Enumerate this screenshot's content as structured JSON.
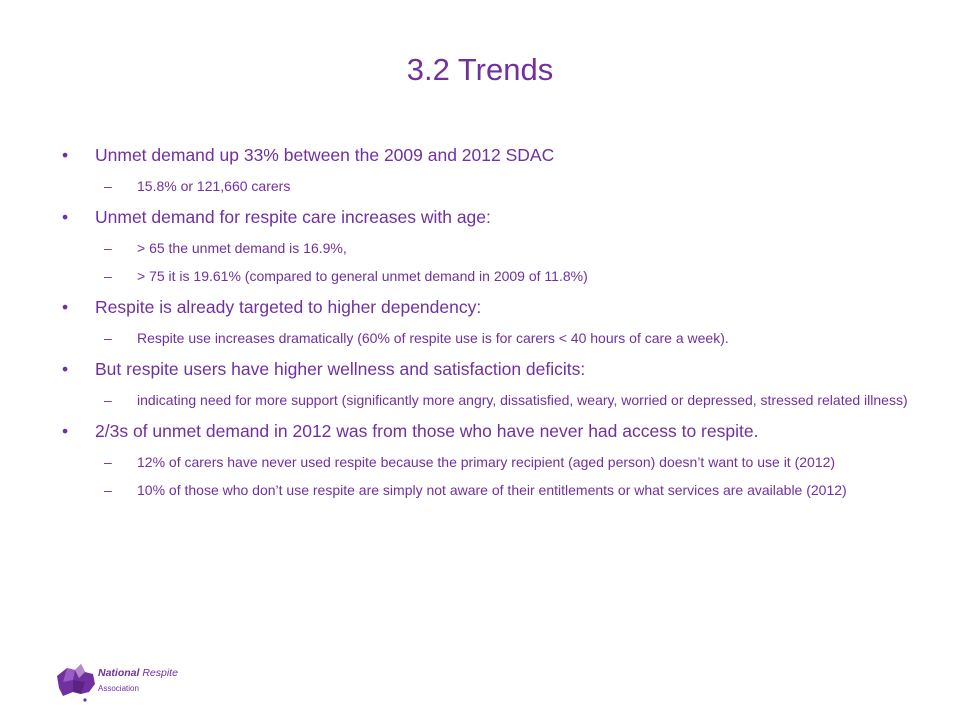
{
  "slide": {
    "title": "3.2 Trends",
    "bullet_glyph": "•",
    "dash_glyph": "–",
    "points": [
      {
        "text": "Unmet demand up 33% between the 2009 and 2012 SDAC",
        "subs": [
          "15.8% or 121,660 carers"
        ]
      },
      {
        "text": "Unmet demand for respite care increases with age:",
        "subs": [
          "> 65 the unmet demand is 16.9%,",
          "> 75 it is 19.61% (compared to general unmet demand in 2009 of 11.8%)"
        ]
      },
      {
        "text": "Respite is already targeted to higher dependency:",
        "subs": [
          "Respite use increases dramatically (60% of respite use is for carers < 40 hours of care a week)."
        ]
      },
      {
        "text": "But respite users have higher wellness and satisfaction deficits:",
        "subs": [
          "indicating need for more support (significantly more angry, dissatisfied, weary, worried or depressed, stressed related illness)"
        ]
      },
      {
        "text": "2/3s of unmet demand in 2012 was from those who have never had access to respite.",
        "subs": [
          "12% of carers have never used respite because the primary recipient (aged person) doesn’t want to use it (2012)",
          "10% of those who don’t use respite are simply not aware of their entitlements or what services are available (2012)"
        ]
      }
    ]
  },
  "logo": {
    "line1_bold": "National",
    "line1_rest": " Respite",
    "line2": "Association",
    "colors": {
      "primary": "#7030A0",
      "light": "#B38BC8"
    }
  }
}
